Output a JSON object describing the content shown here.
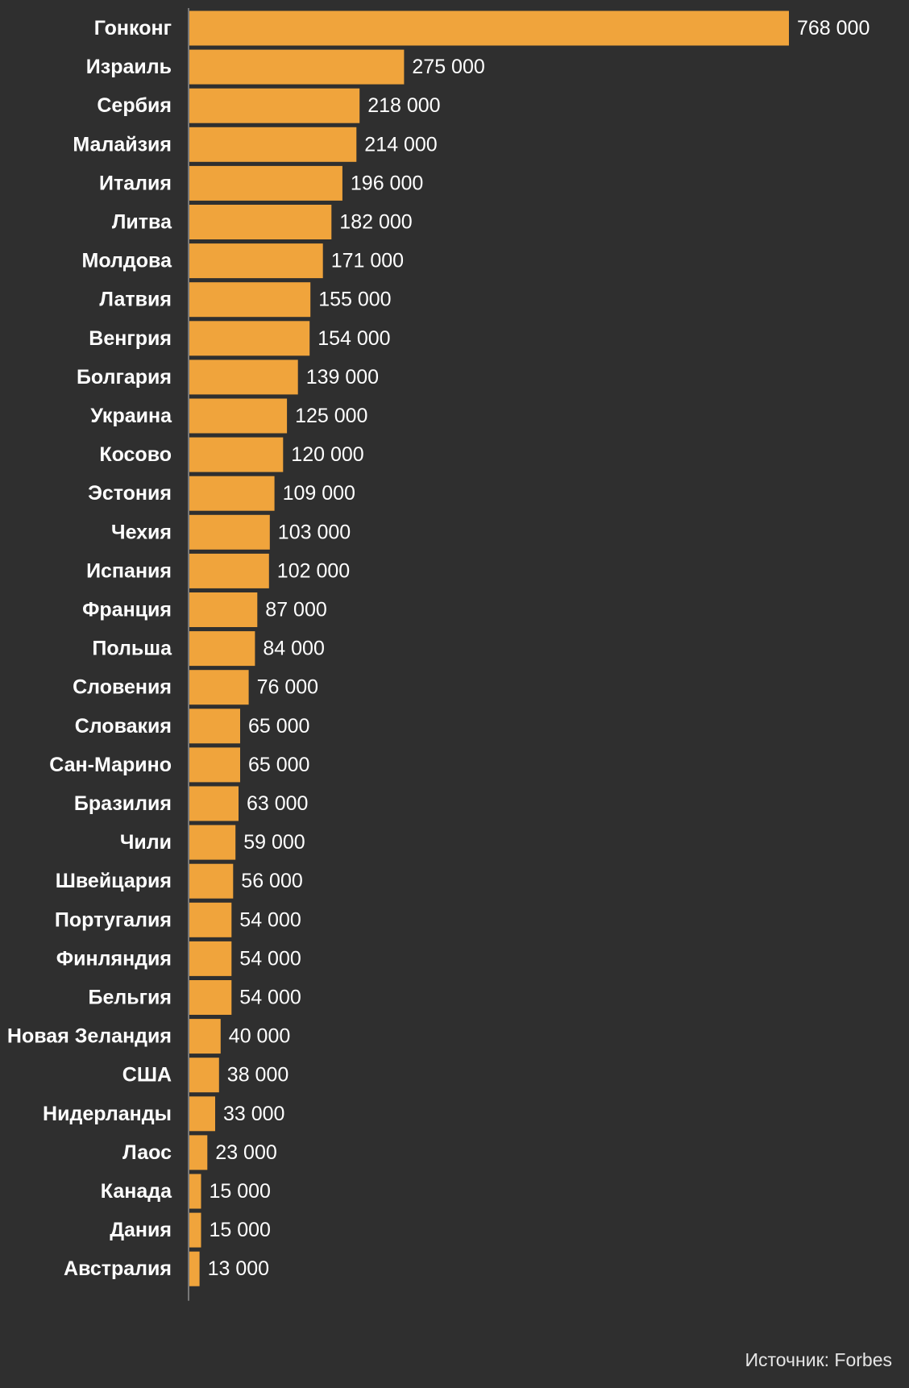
{
  "chart_data": {
    "type": "bar",
    "orientation": "horizontal",
    "title": "",
    "xlabel": "",
    "ylabel": "",
    "grid": false,
    "legend": "none",
    "xlim": [
      0,
      850000
    ],
    "bar_color": "#f0a43c",
    "background_color": "#2f2f2f",
    "categories": [
      "Гонконг",
      "Израиль",
      "Сербия",
      "Малайзия",
      "Италия",
      "Литва",
      "Молдова",
      "Латвия",
      "Венгрия",
      "Болгария",
      "Украина",
      "Косово",
      "Эстония",
      "Чехия",
      "Испания",
      "Франция",
      "Польша",
      "Словения",
      "Словакия",
      "Сан-Марино",
      "Бразилия",
      "Чили",
      "Швейцария",
      "Португалия",
      "Финляндия",
      "Бельгия",
      "Новая Зеландия",
      "США",
      "Нидерланды",
      "Лаос",
      "Канада",
      "Дания",
      "Австралия"
    ],
    "values": [
      768000,
      275000,
      218000,
      214000,
      196000,
      182000,
      171000,
      155000,
      154000,
      139000,
      125000,
      120000,
      109000,
      103000,
      102000,
      87000,
      84000,
      76000,
      65000,
      65000,
      63000,
      59000,
      56000,
      54000,
      54000,
      54000,
      40000,
      38000,
      33000,
      23000,
      15000,
      15000,
      13000
    ],
    "value_labels": [
      "768 000",
      "275 000",
      "218 000",
      "214 000",
      "196 000",
      "182 000",
      "171 000",
      "155 000",
      "154 000",
      "139 000",
      "125 000",
      "120 000",
      "109 000",
      "103 000",
      "102 000",
      "87 000",
      "84 000",
      "76 000",
      "65 000",
      "65 000",
      "63 000",
      "59 000",
      "56 000",
      "54 000",
      "54 000",
      "54 000",
      "40 000",
      "38 000",
      "33 000",
      "23 000",
      "15 000",
      "15 000",
      "13 000"
    ]
  },
  "footer": {
    "source": "Источник: Forbes"
  }
}
